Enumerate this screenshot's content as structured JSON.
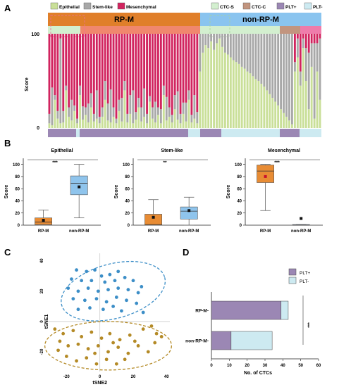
{
  "panels": {
    "a": "A",
    "b": "B",
    "c": "C",
    "d": "D"
  },
  "colors": {
    "epithelial": "#c9df98",
    "stem": "#a8a8a8",
    "mesenchymal": "#d1245f",
    "rpm": "#e07f2a",
    "nonrpm": "#8ac4ef",
    "rpm_sub": "#f0876e",
    "ctc_s": "#d3efcf",
    "ctc_c": "#c2957f",
    "ctc_c_pink": "#ef7cab",
    "plt_pos": "#9b87b4",
    "plt_neg": "#cdeaf1",
    "tsne_blue": "#3c8ec7",
    "tsne_gold": "#b48a26",
    "box_orange": "#e88c34",
    "box_blue": "#8fc4ec"
  },
  "panel_a": {
    "legend_left": [
      "Epithelial",
      "Stem-like",
      "Mesenchymal"
    ],
    "legend_right": [
      "CTC-S",
      "CTC-C",
      "PLT+",
      "PLT-"
    ],
    "group_labels": [
      "RP-M",
      "non-RP-M"
    ],
    "ylabel": "Score",
    "tick_top": "100",
    "tick_bottom": "0"
  },
  "chart_data": [
    {
      "type": "bar",
      "id": "score-stack",
      "ylabel": "Score",
      "ylim": [
        0,
        100
      ],
      "series": [
        {
          "name": "Epithelial",
          "color": "#c9df98"
        },
        {
          "name": "Stem-like",
          "color": "#a8a8a8"
        },
        {
          "name": "Mesenchymal",
          "color": "#d1245f"
        }
      ],
      "bars": [
        [
          5,
          10,
          85
        ],
        [
          3,
          40,
          57
        ],
        [
          30,
          5,
          65
        ],
        [
          10,
          8,
          82
        ],
        [
          5,
          90,
          5
        ],
        [
          6,
          12,
          82
        ],
        [
          40,
          5,
          55
        ],
        [
          12,
          10,
          78
        ],
        [
          8,
          22,
          70
        ],
        [
          18,
          6,
          76
        ],
        [
          5,
          5,
          90
        ],
        [
          35,
          10,
          55
        ],
        [
          9,
          14,
          77
        ],
        [
          14,
          8,
          78
        ],
        [
          6,
          20,
          74
        ],
        [
          22,
          15,
          63
        ],
        [
          7,
          8,
          85
        ],
        [
          10,
          30,
          60
        ],
        [
          5,
          7,
          88
        ],
        [
          12,
          10,
          78
        ],
        [
          30,
          20,
          50
        ],
        [
          8,
          18,
          74
        ],
        [
          6,
          35,
          59
        ],
        [
          12,
          10,
          78
        ],
        [
          5,
          5,
          90
        ],
        [
          18,
          12,
          70
        ],
        [
          7,
          25,
          68
        ],
        [
          40,
          10,
          50
        ],
        [
          6,
          9,
          85
        ],
        [
          15,
          20,
          65
        ],
        [
          5,
          35,
          60
        ],
        [
          9,
          8,
          83
        ],
        [
          22,
          10,
          68
        ],
        [
          7,
          15,
          78
        ],
        [
          12,
          30,
          58
        ],
        [
          5,
          10,
          85
        ],
        [
          28,
          6,
          66
        ],
        [
          10,
          12,
          78
        ],
        [
          6,
          22,
          72
        ],
        [
          14,
          8,
          78
        ],
        [
          5,
          15,
          80
        ],
        [
          35,
          10,
          55
        ],
        [
          8,
          25,
          67
        ],
        [
          12,
          10,
          78
        ],
        [
          6,
          8,
          86
        ],
        [
          20,
          15,
          65
        ],
        [
          9,
          30,
          61
        ],
        [
          5,
          10,
          85
        ],
        [
          15,
          12,
          73
        ],
        [
          7,
          20,
          73
        ],
        [
          30,
          10,
          60
        ],
        [
          6,
          8,
          86
        ],
        [
          10,
          25,
          65
        ],
        [
          5,
          12,
          83
        ],
        [
          60,
          40,
          0
        ],
        [
          80,
          20,
          0
        ],
        [
          88,
          12,
          0
        ],
        [
          85,
          15,
          0
        ],
        [
          92,
          8,
          0
        ],
        [
          83,
          17,
          0
        ],
        [
          90,
          10,
          0
        ],
        [
          95,
          5,
          0
        ],
        [
          86,
          14,
          0
        ],
        [
          80,
          20,
          0
        ],
        [
          78,
          22,
          0
        ],
        [
          75,
          25,
          0
        ],
        [
          72,
          28,
          0
        ],
        [
          70,
          30,
          0
        ],
        [
          68,
          32,
          0
        ],
        [
          65,
          35,
          0
        ],
        [
          63,
          37,
          0
        ],
        [
          60,
          40,
          0
        ],
        [
          58,
          42,
          0
        ],
        [
          55,
          45,
          0
        ],
        [
          52,
          48,
          0
        ],
        [
          50,
          50,
          0
        ],
        [
          47,
          53,
          0
        ],
        [
          44,
          56,
          0
        ],
        [
          40,
          60,
          0
        ],
        [
          36,
          64,
          0
        ],
        [
          32,
          68,
          0
        ],
        [
          28,
          72,
          0
        ],
        [
          24,
          76,
          0
        ],
        [
          20,
          80,
          0
        ],
        [
          16,
          84,
          0
        ],
        [
          12,
          88,
          0
        ],
        [
          8,
          92,
          0
        ],
        [
          4,
          96,
          0
        ],
        [
          60,
          10,
          30
        ],
        [
          75,
          20,
          5
        ],
        [
          45,
          15,
          40
        ],
        [
          85,
          10,
          5
        ],
        [
          50,
          35,
          15
        ],
        [
          20,
          60,
          20
        ],
        [
          65,
          25,
          10
        ],
        [
          10,
          80,
          10
        ],
        [
          60,
          30,
          10
        ],
        [
          30,
          65,
          5
        ]
      ],
      "groups": [
        {
          "label": "RP-M",
          "count": 54
        },
        {
          "label": "non-RP-M",
          "count": 44
        }
      ]
    },
    {
      "type": "box",
      "id": "epithelial-box",
      "title": "Epithelial",
      "ylabel": "Score",
      "ylim": [
        0,
        110
      ],
      "yticks": [
        0,
        20,
        40,
        60,
        80,
        100
      ],
      "categories": [
        "RP-M",
        "non-RP-M"
      ],
      "boxes": [
        {
          "min": 0,
          "q1": 1,
          "median": 5,
          "q3": 12,
          "max": 25,
          "mean": 8
        },
        {
          "min": 12,
          "q1": 50,
          "median": 69,
          "q3": 81,
          "max": 100,
          "mean": 63
        }
      ],
      "significance": "***"
    },
    {
      "type": "box",
      "id": "stemlike-box",
      "title": "Stem-like",
      "ylabel": "Score",
      "ylim": [
        0,
        110
      ],
      "yticks": [
        0,
        20,
        40,
        60,
        80,
        100
      ],
      "categories": [
        "RP-M",
        "non-RP-M"
      ],
      "boxes": [
        {
          "min": 0,
          "q1": 0,
          "median": 1,
          "q3": 18,
          "max": 42,
          "mean": 13
        },
        {
          "min": 0,
          "q1": 10,
          "median": 23,
          "q3": 30,
          "max": 46,
          "mean": 24
        }
      ],
      "significance": "**"
    },
    {
      "type": "box",
      "id": "mesenchymal-box",
      "title": "Mesenchymal",
      "ylabel": "Score",
      "ylim": [
        0,
        110
      ],
      "yticks": [
        0,
        20,
        40,
        60,
        80,
        100
      ],
      "categories": [
        "RP-M",
        "non-RP-M"
      ],
      "boxes": [
        {
          "min": 24,
          "q1": 70,
          "median": 89,
          "q3": 99,
          "max": 100,
          "mean": 80
        },
        {
          "min": 0,
          "q1": 0,
          "median": 0,
          "q3": 1,
          "max": 1,
          "mean": 11
        }
      ],
      "significance": "***"
    },
    {
      "type": "scatter",
      "id": "tsne",
      "xlabel": "tSNE2",
      "ylabel": "tSNE1",
      "xlim": [
        -32,
        42
      ],
      "ylim": [
        -33,
        45
      ],
      "xticks": [
        -20,
        0,
        20,
        40
      ],
      "yticks": [
        -20,
        0,
        20,
        40
      ],
      "series": [
        {
          "name": "blue",
          "color": "#3c8ec7",
          "points": [
            [
              -14,
              34
            ],
            [
              -8,
              33
            ],
            [
              -3,
              34
            ],
            [
              1,
              30
            ],
            [
              6,
              31
            ],
            [
              11,
              33
            ],
            [
              -17,
              28
            ],
            [
              -11,
              27
            ],
            [
              -5,
              27
            ],
            [
              3,
              26
            ],
            [
              9,
              27
            ],
            [
              15,
              29
            ],
            [
              20,
              27
            ],
            [
              25,
              23
            ],
            [
              -19,
              22
            ],
            [
              -13,
              20
            ],
            [
              -7,
              22
            ],
            [
              -1,
              20
            ],
            [
              5,
              21
            ],
            [
              11,
              22
            ],
            [
              17,
              21
            ],
            [
              23,
              19
            ],
            [
              -16,
              15
            ],
            [
              -9,
              14
            ],
            [
              -2,
              15
            ],
            [
              4,
              13
            ],
            [
              10,
              16
            ],
            [
              16,
              14
            ],
            [
              -6,
              9
            ],
            [
              2,
              8
            ],
            [
              8,
              10
            ],
            [
              22,
              12
            ],
            [
              26,
              6
            ],
            [
              -13,
              8
            ],
            [
              13,
              7
            ]
          ]
        },
        {
          "name": "gold",
          "color": "#b48a26",
          "points": [
            [
              -27,
              -5
            ],
            [
              -22,
              -8
            ],
            [
              -16,
              -6
            ],
            [
              -11,
              -10
            ],
            [
              -5,
              -7
            ],
            [
              1,
              -11
            ],
            [
              6,
              -8
            ],
            [
              12,
              -12
            ],
            [
              18,
              -9
            ],
            [
              26,
              -5
            ],
            [
              31,
              -3
            ],
            [
              34,
              -8
            ],
            [
              37,
              -10
            ],
            [
              33,
              -14
            ],
            [
              -24,
              -13
            ],
            [
              -19,
              -16
            ],
            [
              -13,
              -15
            ],
            [
              -7,
              -18
            ],
            [
              -1,
              -16
            ],
            [
              5,
              -20
            ],
            [
              11,
              -17
            ],
            [
              17,
              -21
            ],
            [
              23,
              -16
            ],
            [
              29,
              -20
            ],
            [
              -20,
              -23
            ],
            [
              -14,
              -26
            ],
            [
              -8,
              -24
            ],
            [
              -2,
              -28
            ],
            [
              4,
              -25
            ],
            [
              10,
              -28
            ],
            [
              -25,
              -19
            ],
            [
              15,
              -25
            ],
            [
              21,
              -13
            ],
            [
              -3,
              -21
            ],
            [
              8,
              -14
            ]
          ]
        }
      ],
      "ellipses": [
        {
          "cx": 8,
          "cy": 20,
          "rx": 32,
          "ry": 18,
          "rotation": -15,
          "color": "#3c8ec7"
        },
        {
          "cx": 5,
          "cy": -16,
          "rx": 38,
          "ry": 16,
          "rotation": 0,
          "color": "#b48a26"
        }
      ]
    },
    {
      "type": "bar",
      "id": "ctc-hbar",
      "orientation": "horizontal",
      "categories": [
        "RP-M",
        "non-RP-M"
      ],
      "xlabel": "No. of CTCs",
      "xlim": [
        0,
        60
      ],
      "xticks": [
        0,
        10,
        20,
        30,
        40,
        50,
        60
      ],
      "series": [
        {
          "name": "PLT+",
          "color": "#9b87b4",
          "values": [
            39,
            11
          ]
        },
        {
          "name": "PLT-",
          "color": "#cdeaf1",
          "values": [
            4,
            23
          ]
        }
      ],
      "significance": "***"
    }
  ]
}
